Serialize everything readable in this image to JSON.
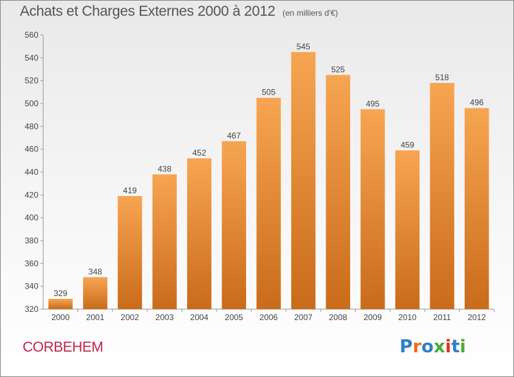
{
  "title": "Achats et Charges Externes 2000 à 2012",
  "title_unit": "(en milliers d'€)",
  "commune": "CORBEHEM",
  "brand": {
    "letters": [
      "P",
      "r",
      "o",
      "x",
      "i",
      "t",
      "i"
    ],
    "colors": [
      "#2f7fc8",
      "#ee6b1d",
      "#2f7fc8",
      "#4aaa3a",
      "#e0321f",
      "#2f7fc8",
      "#4aaa3a"
    ]
  },
  "colors": {
    "bar_top": "#f7a552",
    "bar_bottom": "#c96b1a",
    "title": "#555555",
    "commune": "#c1264b"
  },
  "chart_data": {
    "type": "bar",
    "categories": [
      "2000",
      "2001",
      "2002",
      "2003",
      "2004",
      "2005",
      "2006",
      "2007",
      "2008",
      "2009",
      "2010",
      "2011",
      "2012"
    ],
    "values": [
      329,
      348,
      419,
      438,
      452,
      467,
      505,
      545,
      525,
      495,
      459,
      518,
      496
    ],
    "ylim": [
      320,
      560
    ],
    "yticks": [
      320,
      340,
      360,
      380,
      400,
      420,
      440,
      460,
      480,
      500,
      520,
      540,
      560
    ],
    "grid": false,
    "data_labels": true
  }
}
